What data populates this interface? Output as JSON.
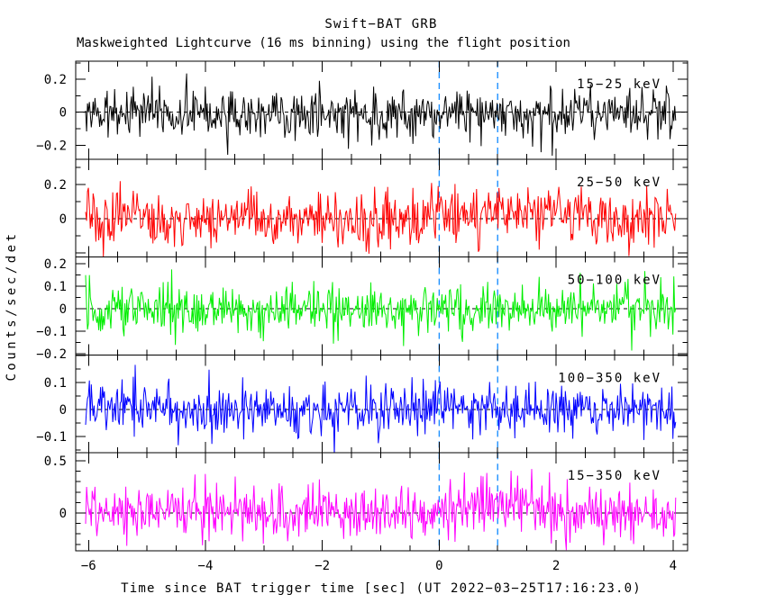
{
  "window": {
    "background": "#ffffff"
  },
  "chart_data": {
    "type": "line",
    "title": "Swift−BAT GRB",
    "subtitle": "Maskweighted Lightcurve (16 ms binning) using the flight position",
    "xlabel": "Time since BAT trigger time [sec] (UT 2022−03−25T17:16:23.0)",
    "ylabel": "Counts/sec/det",
    "binning": "16 ms",
    "grid": "off",
    "legend_position": "inside-top-right-of-each-panel",
    "frame_color": "#000000",
    "zero_line": {
      "style": "dashed",
      "color": "#000000"
    },
    "marker_lines": [
      {
        "t": 0.0,
        "color": "#1e90ff",
        "style": "dashed"
      },
      {
        "t": 1.0,
        "color": "#1e90ff",
        "style": "dashed"
      }
    ],
    "x_axis": {
      "range": [
        -6.22,
        4.25
      ],
      "data_range": [
        -6.05,
        4.05
      ],
      "bin_seconds": 0.016,
      "major_ticks": [
        -6,
        -4,
        -2,
        0,
        2,
        4
      ],
      "major_tick_labels": [
        "−6",
        "−4",
        "−2",
        "0",
        "2",
        "4"
      ],
      "minor_step": 0.5
    },
    "panels": [
      {
        "label": "15−25 keV",
        "color": "#000000",
        "ylim": [
          -0.285,
          0.31
        ],
        "major_step": 0.2,
        "minor_step": 0.1,
        "labeled_ticks": [
          {
            "v": 0.2,
            "label": "0.2"
          },
          {
            "v": 0.0,
            "label": "0"
          },
          {
            "v": -0.2,
            "label": "−0.2"
          }
        ],
        "noise_mean": 0.0,
        "noise_sigma": 0.075,
        "bumps": []
      },
      {
        "label": "25−50 keV",
        "color": "#ff0000",
        "ylim": [
          -0.224,
          0.348
        ],
        "major_step": 0.2,
        "minor_step": 0.1,
        "labeled_ticks": [
          {
            "v": 0.2,
            "label": "0.2"
          },
          {
            "v": 0.0,
            "label": "0"
          }
        ],
        "noise_mean": 0.0,
        "noise_sigma": 0.082,
        "bumps": [
          {
            "t0": 1.3,
            "amplitude": 0.05,
            "width": 0.6
          }
        ]
      },
      {
        "label": "50−100 keV",
        "color": "#00ee00",
        "ylim": [
          -0.206,
          0.23
        ],
        "major_step": 0.1,
        "minor_step": 0.05,
        "labeled_ticks": [
          {
            "v": 0.2,
            "label": "0.2"
          },
          {
            "v": 0.1,
            "label": "0.1"
          },
          {
            "v": 0.0,
            "label": "0"
          },
          {
            "v": -0.1,
            "label": "−0.1"
          },
          {
            "v": -0.2,
            "label": "−0.2"
          }
        ],
        "noise_mean": 0.0,
        "noise_sigma": 0.058,
        "bumps": []
      },
      {
        "label": "100−350 keV",
        "color": "#0000ff",
        "ylim": [
          -0.161,
          0.202
        ],
        "major_step": 0.1,
        "minor_step": 0.05,
        "labeled_ticks": [
          {
            "v": 0.1,
            "label": "0.1"
          },
          {
            "v": 0.0,
            "label": "0"
          },
          {
            "v": -0.1,
            "label": "−0.1"
          }
        ],
        "noise_mean": 0.0,
        "noise_sigma": 0.048,
        "bumps": []
      },
      {
        "label": "15−350 keV",
        "color": "#ff00ff",
        "ylim": [
          -0.362,
          0.576
        ],
        "major_step": 0.5,
        "minor_step": 0.1,
        "labeled_ticks": [
          {
            "v": 0.5,
            "label": "0.5"
          },
          {
            "v": 0.0,
            "label": "0"
          }
        ],
        "noise_mean": 0.0,
        "noise_sigma": 0.135,
        "bumps": [
          {
            "t0": 1.0,
            "amplitude": 0.07,
            "width": 0.7
          }
        ]
      }
    ]
  }
}
